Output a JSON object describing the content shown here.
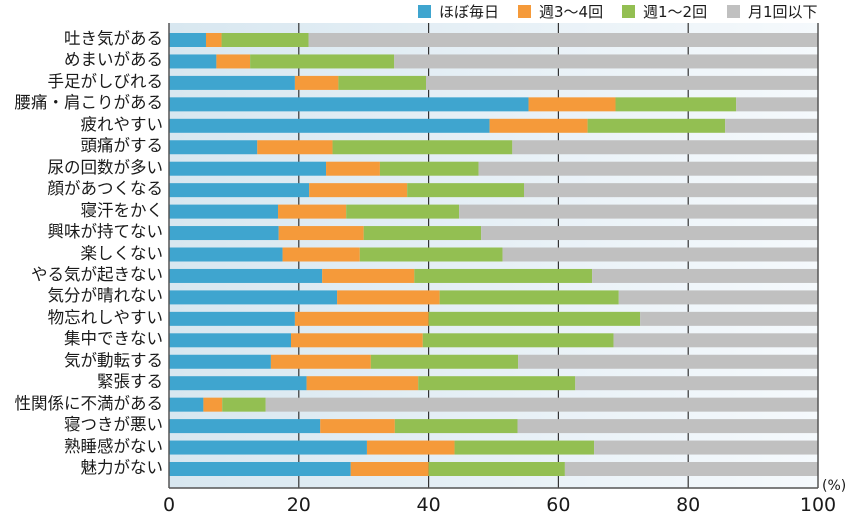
{
  "chart_data": {
    "type": "bar",
    "orientation": "horizontal",
    "stacked": true,
    "title": "",
    "xlabel": "",
    "ylabel": "",
    "unit_label": "(%)",
    "xlim": [
      0,
      100
    ],
    "x_ticks": [
      "0",
      "20",
      "40",
      "60",
      "80",
      "100"
    ],
    "x_tick_values": [
      0,
      20,
      40,
      60,
      80,
      100
    ],
    "grid": true,
    "legend_position": "top-right",
    "categories": [
      "吐き気がある",
      "めまいがある",
      "手足がしびれる",
      "腰痛・肩こりがある",
      "疲れやすい",
      "頭痛がする",
      "尿の回数が多い",
      "顔があつくなる",
      "寝汗をかく",
      "興味が持てない",
      "楽しくない",
      "やる気が起きない",
      "気分が晴れない",
      "物忘れしやすい",
      "集中できない",
      "気が動転する",
      "緊張する",
      "性関係に不満がある",
      "寝つきが悪い",
      "熟睡感がない",
      "魅力がない"
    ],
    "series": [
      {
        "name": "ほぼ毎日",
        "color": "#3fa5cf",
        "values": [
          5.7,
          7.3,
          19.4,
          55.4,
          49.4,
          13.6,
          24.2,
          21.6,
          16.8,
          16.9,
          17.5,
          23.6,
          25.9,
          19.4,
          18.8,
          15.7,
          21.2,
          5.3,
          23.3,
          30.5,
          28.0
        ]
      },
      {
        "name": "週3～4回",
        "color": "#f59a3a",
        "values": [
          2.4,
          5.2,
          6.7,
          13.4,
          15.1,
          11.6,
          8.3,
          15.1,
          10.5,
          13.1,
          11.9,
          14.2,
          15.8,
          20.6,
          20.3,
          15.4,
          17.2,
          2.9,
          11.5,
          13.5,
          12.0
        ]
      },
      {
        "name": "週1～2回",
        "color": "#93bf52",
        "values": [
          13.4,
          22.2,
          13.5,
          18.6,
          21.2,
          27.7,
          15.2,
          18.0,
          17.4,
          18.1,
          22.0,
          27.4,
          27.6,
          32.6,
          29.4,
          22.7,
          24.2,
          6.7,
          18.9,
          21.5,
          21.0
        ]
      },
      {
        "name": "月1回以下",
        "color": "#c0c0c0",
        "values": [
          78.5,
          65.3,
          60.4,
          12.6,
          14.3,
          47.1,
          52.3,
          45.3,
          55.3,
          51.9,
          48.6,
          34.8,
          30.7,
          27.4,
          31.5,
          46.2,
          37.4,
          85.1,
          46.3,
          34.5,
          39.0
        ]
      }
    ]
  }
}
